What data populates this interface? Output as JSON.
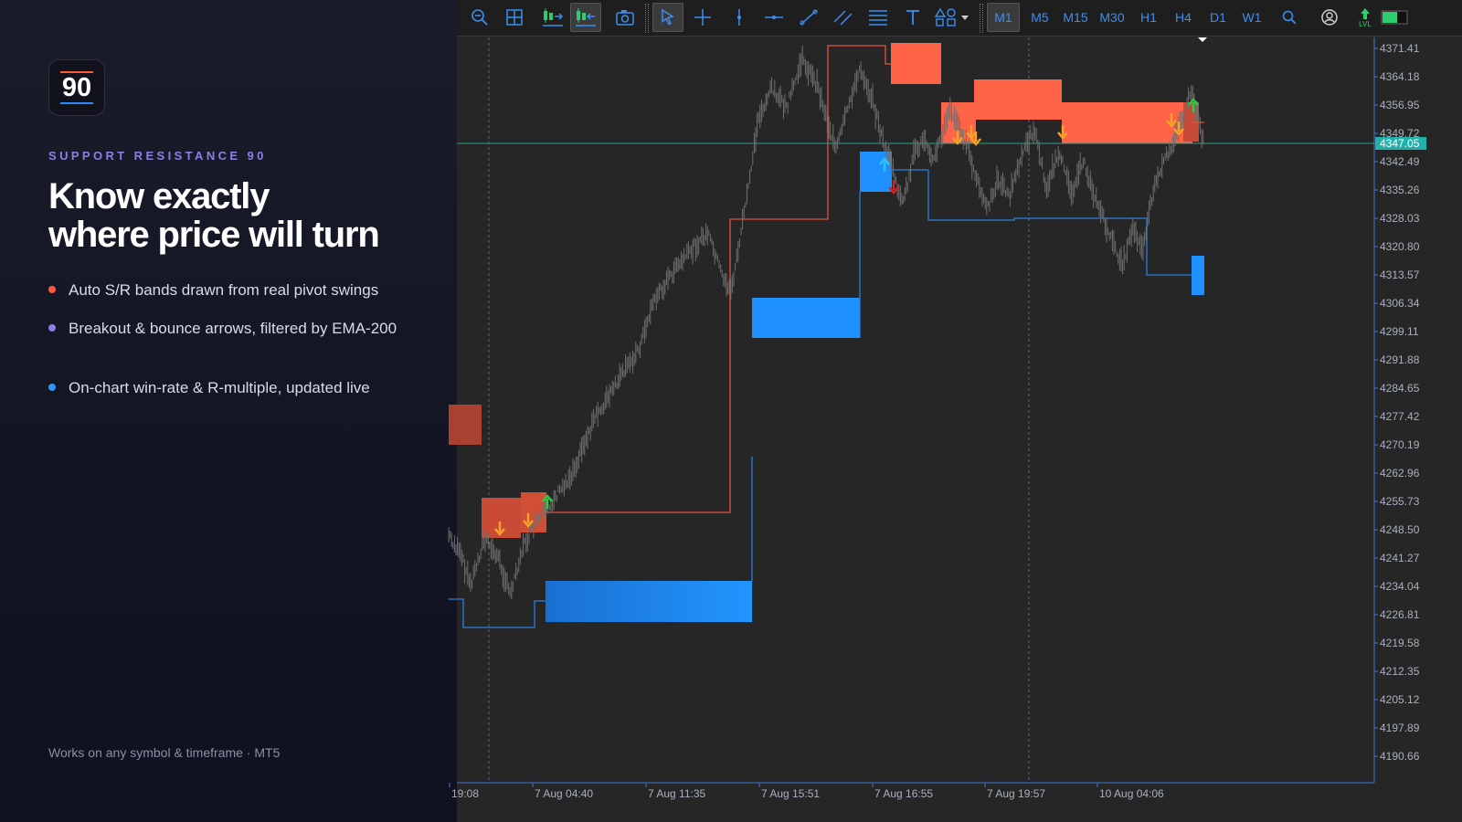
{
  "promo": {
    "logo_text": "90",
    "eyebrow": "SUPPORT RESISTANCE 90",
    "headline_line1": "Know exactly",
    "headline_line2": "where price will turn",
    "features": [
      {
        "text": "Auto S/R bands drawn from real pivot swings",
        "dot_color": "#ff5a3c"
      },
      {
        "text": "Breakout & bounce arrows, filtered by EMA-200",
        "dot_color": "#8e7ee8"
      },
      {
        "text": "On-chart win-rate & R-multiple, updated live",
        "dot_color": "#2e95ff"
      }
    ],
    "footer": "Works on any symbol & timeframe · MT5"
  },
  "toolbar": {
    "timeframes": [
      "M1",
      "M5",
      "M15",
      "M30",
      "H1",
      "H4",
      "D1",
      "W1"
    ],
    "active_timeframe": "M1",
    "level_label": "LVL"
  },
  "chart": {
    "price_labels": [
      "4371.41",
      "4364.18",
      "4356.95",
      "4349.72",
      "4342.49",
      "4335.26",
      "4328.03",
      "4320.80",
      "4313.57",
      "4306.34",
      "4299.11",
      "4291.88",
      "4284.65",
      "4277.42",
      "4270.19",
      "4262.96",
      "4255.73",
      "4248.50",
      "4241.27",
      "4234.04",
      "4226.81",
      "4219.58",
      "4212.35",
      "4205.12",
      "4197.89",
      "4190.66"
    ],
    "current_price": "4347.05",
    "time_labels": [
      "19:08",
      "7 Aug 04:40",
      "7 Aug 11:35",
      "7 Aug 15:51",
      "7 Aug 16:55",
      "7 Aug 19:57",
      "10 Aug 04:06"
    ],
    "colors": {
      "background": "#262626",
      "resistance": "#ff6348",
      "support": "#1e90ff",
      "price_line": "#2a9d8f",
      "axis": "#3d7bd8"
    }
  }
}
